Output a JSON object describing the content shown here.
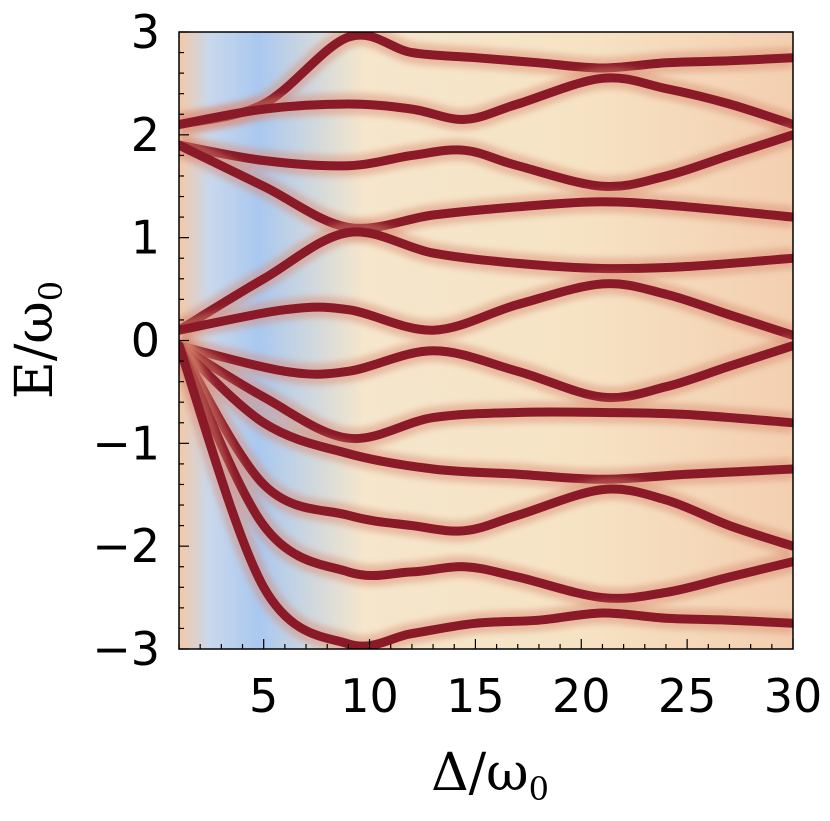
{
  "chart_data": {
    "type": "heatmap",
    "title": "",
    "xlabel": "Δ/ω",
    "xlabel_sub": "0",
    "ylabel": "E/ω",
    "ylabel_sub": "0",
    "xlim": [
      1,
      30
    ],
    "ylim": [
      -3,
      3
    ],
    "x_ticks": [
      5,
      10,
      15,
      20,
      25,
      30
    ],
    "x_tick_labels": [
      "5",
      "10",
      "15",
      "20",
      "25",
      "30"
    ],
    "y_ticks": [
      -3,
      -2,
      -1,
      0,
      1,
      2,
      3
    ],
    "y_tick_labels": [
      "−3",
      "−2",
      "−1",
      "0",
      "1",
      "2",
      "3"
    ],
    "grid": false,
    "colors": {
      "background_low": "#a9c8f0",
      "background_mid": "#f5e3c6",
      "background_high": "#f3c9a8",
      "peak": "#8a1a28"
    },
    "bands": [
      {
        "x": [
          1,
          5,
          9,
          12,
          15,
          18,
          21,
          24,
          27,
          30
        ],
        "y": [
          2.1,
          2.3,
          2.95,
          2.8,
          2.75,
          2.7,
          2.65,
          2.7,
          2.72,
          2.75
        ]
      },
      {
        "x": [
          1,
          5,
          9,
          12,
          14.5,
          17,
          21,
          24,
          27,
          30
        ],
        "y": [
          2.1,
          2.25,
          2.3,
          2.25,
          2.15,
          2.3,
          2.55,
          2.45,
          2.3,
          2.1
        ]
      },
      {
        "x": [
          1,
          5,
          9,
          12,
          14.5,
          17,
          21,
          24,
          27,
          30
        ],
        "y": [
          1.9,
          1.75,
          1.7,
          1.8,
          1.85,
          1.7,
          1.5,
          1.6,
          1.8,
          2.0
        ]
      },
      {
        "x": [
          1,
          5,
          9,
          13,
          17,
          21,
          25,
          30
        ],
        "y": [
          1.9,
          1.5,
          1.1,
          1.22,
          1.3,
          1.35,
          1.3,
          1.2
        ]
      },
      {
        "x": [
          1,
          5,
          9,
          13,
          17,
          21,
          25,
          30
        ],
        "y": [
          0.1,
          0.6,
          1.05,
          0.85,
          0.75,
          0.7,
          0.72,
          0.8
        ]
      },
      {
        "x": [
          1,
          6,
          9,
          13,
          17,
          21,
          24,
          27,
          30
        ],
        "y": [
          0.1,
          0.3,
          0.3,
          0.1,
          0.35,
          0.55,
          0.45,
          0.25,
          0.05
        ]
      },
      {
        "x": [
          1,
          6,
          9,
          13,
          17,
          21,
          24,
          27,
          30
        ],
        "y": [
          -0.05,
          -0.3,
          -0.3,
          -0.1,
          -0.3,
          -0.55,
          -0.45,
          -0.25,
          -0.05
        ]
      },
      {
        "x": [
          1,
          5,
          9,
          13,
          17,
          21,
          25,
          30
        ],
        "y": [
          -0.05,
          -0.55,
          -0.95,
          -0.75,
          -0.7,
          -0.7,
          -0.72,
          -0.8
        ]
      },
      {
        "x": [
          1,
          5,
          9,
          13,
          17,
          21,
          25,
          30
        ],
        "y": [
          -0.05,
          -0.8,
          -1.1,
          -1.25,
          -1.3,
          -1.35,
          -1.3,
          -1.25
        ]
      },
      {
        "x": [
          1,
          5,
          9,
          12,
          14.5,
          17,
          21,
          24,
          27,
          30
        ],
        "y": [
          -0.05,
          -1.4,
          -1.7,
          -1.8,
          -1.85,
          -1.7,
          -1.45,
          -1.55,
          -1.8,
          -2.0
        ]
      },
      {
        "x": [
          1,
          5,
          9,
          12,
          14.5,
          17,
          21,
          24,
          27,
          30
        ],
        "y": [
          -0.05,
          -1.8,
          -2.25,
          -2.25,
          -2.2,
          -2.3,
          -2.5,
          -2.45,
          -2.3,
          -2.15
        ]
      },
      {
        "x": [
          1,
          5,
          9,
          12,
          15,
          18,
          21,
          24,
          27,
          30
        ],
        "y": [
          -0.05,
          -2.4,
          -2.95,
          -2.85,
          -2.75,
          -2.72,
          -2.65,
          -2.7,
          -2.72,
          -2.75
        ]
      }
    ]
  }
}
